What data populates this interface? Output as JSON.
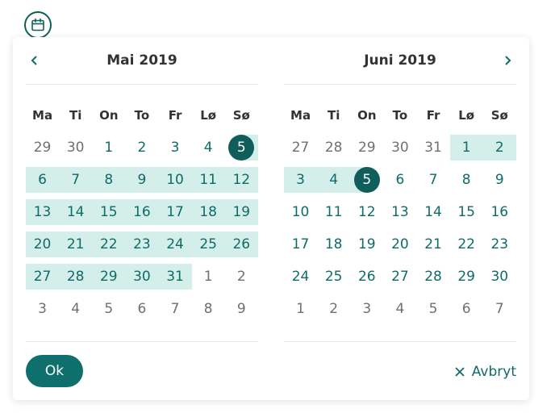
{
  "icons": {
    "trigger": "calendar-icon",
    "prev": "chevron-left-icon",
    "next": "chevron-right-icon",
    "cancel": "close-icon"
  },
  "colors": {
    "accent": "#0f5e5c",
    "range": "#d4eee9",
    "text_current": "#0f6b69",
    "text_other": "#707070"
  },
  "weekdays": [
    "Ma",
    "Ti",
    "On",
    "To",
    "Fr",
    "Lø",
    "Sø"
  ],
  "months": [
    {
      "title": "Mai 2019",
      "days": [
        {
          "n": "29",
          "o": true
        },
        {
          "n": "30",
          "o": true
        },
        {
          "n": "1"
        },
        {
          "n": "2"
        },
        {
          "n": "3"
        },
        {
          "n": "4"
        },
        {
          "n": "5",
          "sel": true,
          "r": "start"
        },
        {
          "n": "6",
          "r": "in"
        },
        {
          "n": "7",
          "r": "in"
        },
        {
          "n": "8",
          "r": "in"
        },
        {
          "n": "9",
          "r": "in"
        },
        {
          "n": "10",
          "r": "in"
        },
        {
          "n": "11",
          "r": "in"
        },
        {
          "n": "12",
          "r": "in"
        },
        {
          "n": "13",
          "r": "in"
        },
        {
          "n": "14",
          "r": "in"
        },
        {
          "n": "15",
          "r": "in"
        },
        {
          "n": "16",
          "r": "in"
        },
        {
          "n": "17",
          "r": "in"
        },
        {
          "n": "18",
          "r": "in"
        },
        {
          "n": "19",
          "r": "in"
        },
        {
          "n": "20",
          "r": "in"
        },
        {
          "n": "21",
          "r": "in"
        },
        {
          "n": "22",
          "r": "in"
        },
        {
          "n": "23",
          "r": "in"
        },
        {
          "n": "24",
          "r": "in"
        },
        {
          "n": "25",
          "r": "in"
        },
        {
          "n": "26",
          "r": "in"
        },
        {
          "n": "27",
          "r": "in"
        },
        {
          "n": "28",
          "r": "in"
        },
        {
          "n": "29",
          "r": "in"
        },
        {
          "n": "30",
          "r": "in"
        },
        {
          "n": "31",
          "r": "in"
        },
        {
          "n": "1",
          "o": true
        },
        {
          "n": "2",
          "o": true
        },
        {
          "n": "3",
          "o": true
        },
        {
          "n": "4",
          "o": true
        },
        {
          "n": "5",
          "o": true
        },
        {
          "n": "6",
          "o": true
        },
        {
          "n": "7",
          "o": true
        },
        {
          "n": "8",
          "o": true
        },
        {
          "n": "9",
          "o": true
        }
      ]
    },
    {
      "title": "Juni 2019",
      "days": [
        {
          "n": "27",
          "o": true
        },
        {
          "n": "28",
          "o": true
        },
        {
          "n": "29",
          "o": true
        },
        {
          "n": "30",
          "o": true
        },
        {
          "n": "31",
          "o": true
        },
        {
          "n": "1",
          "r": "in"
        },
        {
          "n": "2",
          "r": "in"
        },
        {
          "n": "3",
          "r": "in"
        },
        {
          "n": "4",
          "r": "in"
        },
        {
          "n": "5",
          "sel": true,
          "r": "end"
        },
        {
          "n": "6"
        },
        {
          "n": "7"
        },
        {
          "n": "8"
        },
        {
          "n": "9"
        },
        {
          "n": "10"
        },
        {
          "n": "11"
        },
        {
          "n": "12"
        },
        {
          "n": "13"
        },
        {
          "n": "14"
        },
        {
          "n": "15"
        },
        {
          "n": "16"
        },
        {
          "n": "17"
        },
        {
          "n": "18"
        },
        {
          "n": "19"
        },
        {
          "n": "20"
        },
        {
          "n": "21"
        },
        {
          "n": "22"
        },
        {
          "n": "23"
        },
        {
          "n": "24"
        },
        {
          "n": "25"
        },
        {
          "n": "26"
        },
        {
          "n": "27"
        },
        {
          "n": "28"
        },
        {
          "n": "29"
        },
        {
          "n": "30"
        },
        {
          "n": "1",
          "o": true
        },
        {
          "n": "2",
          "o": true
        },
        {
          "n": "3",
          "o": true
        },
        {
          "n": "4",
          "o": true
        },
        {
          "n": "5",
          "o": true
        },
        {
          "n": "6",
          "o": true
        },
        {
          "n": "7",
          "o": true
        }
      ]
    }
  ],
  "footer": {
    "ok_label": "Ok",
    "cancel_label": "Avbryt"
  }
}
